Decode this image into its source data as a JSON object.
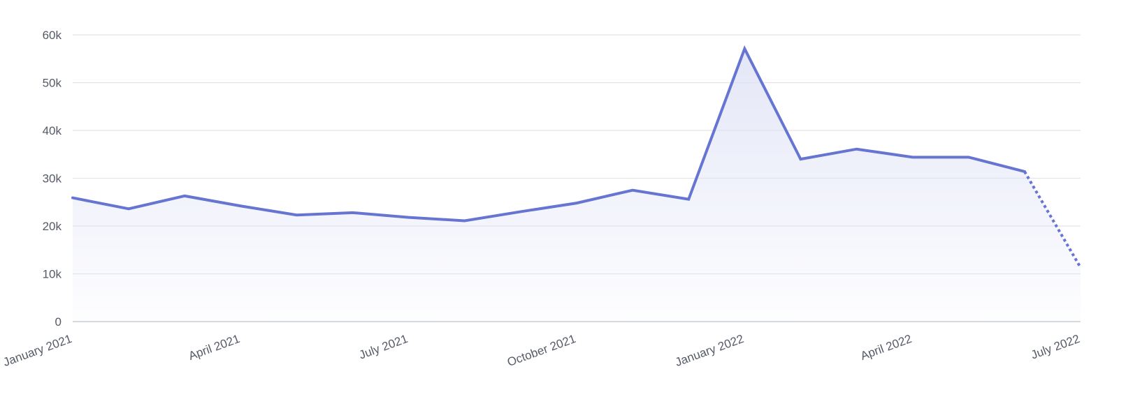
{
  "chart_data": {
    "type": "area",
    "title": "",
    "xlabel": "",
    "ylabel": "",
    "x": [
      "2021-01",
      "2021-02",
      "2021-03",
      "2021-04",
      "2021-05",
      "2021-06",
      "2021-07",
      "2021-08",
      "2021-09",
      "2021-10",
      "2021-11",
      "2021-12",
      "2022-01",
      "2022-02",
      "2022-03",
      "2022-04",
      "2022-05",
      "2022-06",
      "2022-07"
    ],
    "series": [
      {
        "values": [
          25900,
          23600,
          26300,
          24200,
          22300,
          22800,
          21800,
          21100,
          23000,
          24800,
          27500,
          25600,
          57100,
          34000,
          36100,
          34400,
          34400,
          31400,
          11300
        ],
        "dashed_from_index": 17
      }
    ],
    "ylim": [
      0,
      60000
    ],
    "y_ticks": [
      0,
      10000,
      20000,
      30000,
      40000,
      50000,
      60000
    ],
    "y_tick_labels": [
      "0",
      "10k",
      "20k",
      "30k",
      "40k",
      "50k",
      "60k"
    ],
    "x_ticks": [
      "2021-01",
      "2021-04",
      "2021-07",
      "2021-10",
      "2022-01",
      "2022-04",
      "2022-07"
    ],
    "x_tick_labels": [
      "January 2021",
      "April 2021",
      "July 2021",
      "October 2021",
      "January 2022",
      "April 2022",
      "July 2022"
    ],
    "grid": true,
    "legend": "none",
    "colors": {
      "line": "#6674d2",
      "fill": "#dfe2f6"
    }
  }
}
